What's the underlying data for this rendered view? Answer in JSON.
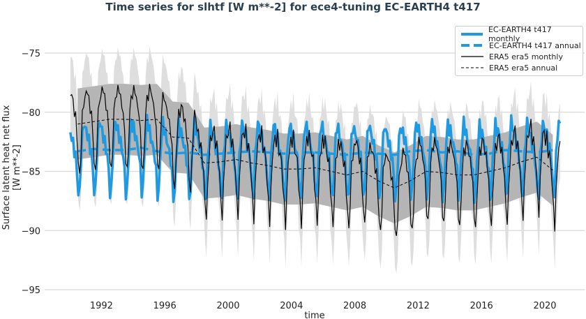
{
  "chart_data": {
    "type": "line",
    "title": "Time series for slhtf [W m**-2] for ece4-tuning EC-EARTH4 t417",
    "xlabel": "time",
    "ylabel": "Surface latent heat net flux\n[W m**-2]",
    "ylabel_lines": [
      "Surface latent heat net flux",
      "[W m**-2]"
    ],
    "ylim": [
      -95.5,
      -73.5
    ],
    "xlim": [
      1988.4,
      2022.1
    ],
    "yticks": [
      -75,
      -80,
      -85,
      -90,
      -95
    ],
    "ytick_labels": [
      "−75",
      "−80",
      "−85",
      "−90",
      "−95"
    ],
    "xticks": [
      1992,
      1996,
      2000,
      2004,
      2008,
      2012,
      2016,
      2020
    ],
    "xtick_labels": [
      "1992",
      "1996",
      "2000",
      "2004",
      "2008",
      "2012",
      "2016",
      "2020"
    ],
    "grid": "horizontal",
    "legend_position": "top-right",
    "years": [
      1990,
      1991,
      1992,
      1993,
      1994,
      1995,
      1996,
      1997,
      1998,
      1999,
      2000,
      2001,
      2002,
      2003,
      2004,
      2005,
      2006,
      2007,
      2008,
      2009,
      2010,
      2011,
      2012,
      2013,
      2014,
      2015,
      2016,
      2017,
      2018,
      2019,
      2020
    ],
    "series": [
      {
        "name": "EC-EARTH4 t417 monthly",
        "color": "#1f9ae0",
        "style": "solid-thick",
        "annual_base": [
          -83.3,
          -83.1,
          -83.2,
          -83.2,
          -83.0,
          -83.3,
          -83.5,
          -83.4,
          -83.6,
          -83.5,
          -83.4,
          -83.3,
          -83.4,
          -83.5,
          -83.4,
          -83.4,
          -83.5,
          -83.6,
          -83.4,
          -83.5,
          -83.6,
          -83.3,
          -83.2,
          -83.4,
          -83.3,
          -83.6,
          -83.5,
          -83.2,
          -83.3,
          -83.4,
          -83.2
        ],
        "seasonal_cycle": [
          1.6,
          1.2,
          0.6,
          0.1,
          -0.5,
          -1.8,
          -3.6,
          -3.4,
          -0.6,
          1.2,
          2.4,
          2.0
        ]
      },
      {
        "name": "EC-EARTH4 t417 annual",
        "color": "#1f9ae0",
        "style": "dashed-thick",
        "values": [
          -83.3,
          -83.1,
          -83.2,
          -83.2,
          -83.0,
          -83.3,
          -83.5,
          -83.4,
          -83.6,
          -83.5,
          -83.4,
          -83.3,
          -83.4,
          -83.5,
          -83.4,
          -83.4,
          -83.5,
          -83.6,
          -83.4,
          -83.5,
          -83.6,
          -83.3,
          -83.2,
          -83.4,
          -83.3,
          -83.6,
          -83.5,
          -83.2,
          -83.3,
          -83.4,
          -83.2
        ]
      },
      {
        "name": "ERA5 era5 monthly",
        "color": "#000000",
        "style": "solid-thin",
        "annual_base": [
          -81.0,
          -80.8,
          -80.6,
          -80.6,
          -80.7,
          -80.6,
          -82.1,
          -82.2,
          -84.3,
          -84.2,
          -84.0,
          -84.3,
          -84.5,
          -84.8,
          -84.8,
          -84.7,
          -85.0,
          -85.3,
          -85.0,
          -85.8,
          -86.4,
          -85.8,
          -85.0,
          -85.1,
          -85.3,
          -85.3,
          -85.0,
          -84.7,
          -84.2,
          -83.8,
          -84.9
        ],
        "seasonal_cycle": [
          2.4,
          2.8,
          1.6,
          1.2,
          0.6,
          -1.2,
          -3.2,
          -4.6,
          -2.2,
          0.6,
          1.8,
          2.2
        ]
      },
      {
        "name": "ERA5 era5 annual",
        "color": "#000000",
        "style": "dashed-thin",
        "values": [
          -81.0,
          -80.8,
          -80.6,
          -80.6,
          -80.7,
          -80.6,
          -82.1,
          -82.2,
          -84.3,
          -84.2,
          -84.0,
          -84.3,
          -84.5,
          -84.8,
          -84.8,
          -84.7,
          -85.0,
          -85.3,
          -85.0,
          -85.8,
          -86.4,
          -85.8,
          -85.0,
          -85.1,
          -85.3,
          -85.3,
          -85.0,
          -84.7,
          -84.2,
          -83.8,
          -84.9
        ]
      }
    ],
    "bands": [
      {
        "around": "ERA5 era5 annual",
        "halfwidth": 3.0,
        "color": "#b5b5b5"
      },
      {
        "around": "ERA5 era5 monthly",
        "halfwidth": 3.2,
        "color": "#dedede"
      }
    ]
  }
}
